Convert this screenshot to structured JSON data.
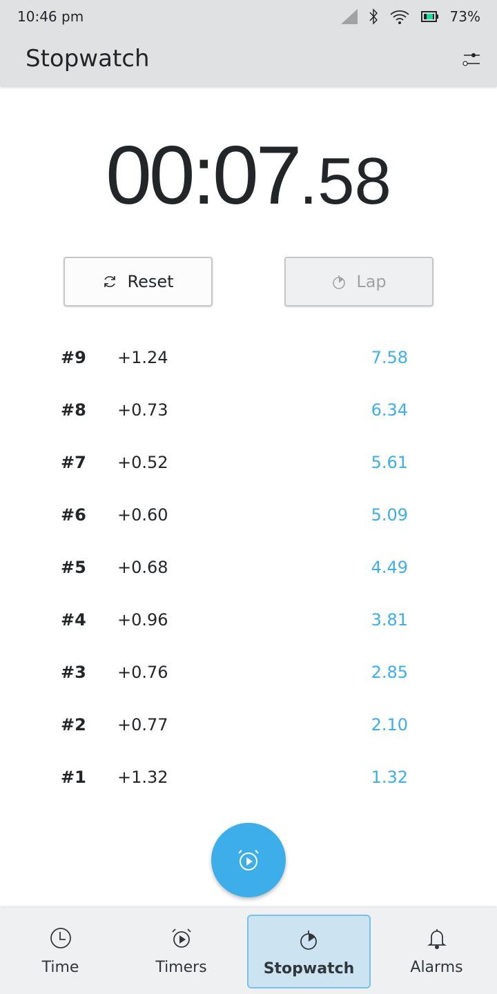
{
  "status_bar": {
    "time": "10:46 pm",
    "battery": "73%",
    "icons": [
      "signal-icon",
      "bluetooth-icon",
      "wifi-icon",
      "battery-icon"
    ]
  },
  "header": {
    "title": "Stopwatch",
    "settings_icon": "sliders-icon"
  },
  "display": {
    "main": "00:07",
    "fraction": ".58"
  },
  "buttons": {
    "reset": "Reset",
    "lap": "Lap"
  },
  "laps": [
    {
      "num": "#9",
      "delta": "+1.24",
      "total": "7.58"
    },
    {
      "num": "#8",
      "delta": "+0.73",
      "total": "6.34"
    },
    {
      "num": "#7",
      "delta": "+0.52",
      "total": "5.61"
    },
    {
      "num": "#6",
      "delta": "+0.60",
      "total": "5.09"
    },
    {
      "num": "#5",
      "delta": "+0.68",
      "total": "4.49"
    },
    {
      "num": "#4",
      "delta": "+0.96",
      "total": "3.81"
    },
    {
      "num": "#3",
      "delta": "+0.76",
      "total": "2.85"
    },
    {
      "num": "#2",
      "delta": "+0.77",
      "total": "2.10"
    },
    {
      "num": "#1",
      "delta": "+1.32",
      "total": "1.32"
    }
  ],
  "nav": [
    {
      "label": "Time"
    },
    {
      "label": "Timers"
    },
    {
      "label": "Stopwatch",
      "active": true
    },
    {
      "label": "Alarms"
    }
  ],
  "colors": {
    "accent": "#3daee9",
    "bar": "#dfe1e3"
  }
}
